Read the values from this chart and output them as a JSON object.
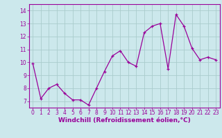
{
  "x": [
    0,
    1,
    2,
    3,
    4,
    5,
    6,
    7,
    8,
    9,
    10,
    11,
    12,
    13,
    14,
    15,
    16,
    17,
    18,
    19,
    20,
    21,
    22,
    23
  ],
  "y": [
    9.9,
    7.2,
    8.0,
    8.3,
    7.6,
    7.1,
    7.1,
    6.7,
    8.0,
    9.3,
    10.5,
    10.9,
    10.0,
    9.7,
    12.3,
    12.8,
    13.0,
    9.5,
    13.7,
    12.8,
    11.1,
    10.2,
    10.4,
    10.2
  ],
  "xlim": [
    -0.5,
    23.5
  ],
  "ylim": [
    6.5,
    14.5
  ],
  "yticks": [
    7,
    8,
    9,
    10,
    11,
    12,
    13,
    14
  ],
  "xticks": [
    0,
    1,
    2,
    3,
    4,
    5,
    6,
    7,
    8,
    9,
    10,
    11,
    12,
    13,
    14,
    15,
    16,
    17,
    18,
    19,
    20,
    21,
    22,
    23
  ],
  "xlabel": "Windchill (Refroidissement éolien,°C)",
  "line_color": "#990099",
  "bg_color": "#cce8ec",
  "grid_color": "#aacccc",
  "axis_color": "#990099",
  "tick_label_color": "#990099",
  "xlabel_color": "#990099",
  "tick_fontsize": 5.5,
  "xlabel_fontsize": 6.5
}
